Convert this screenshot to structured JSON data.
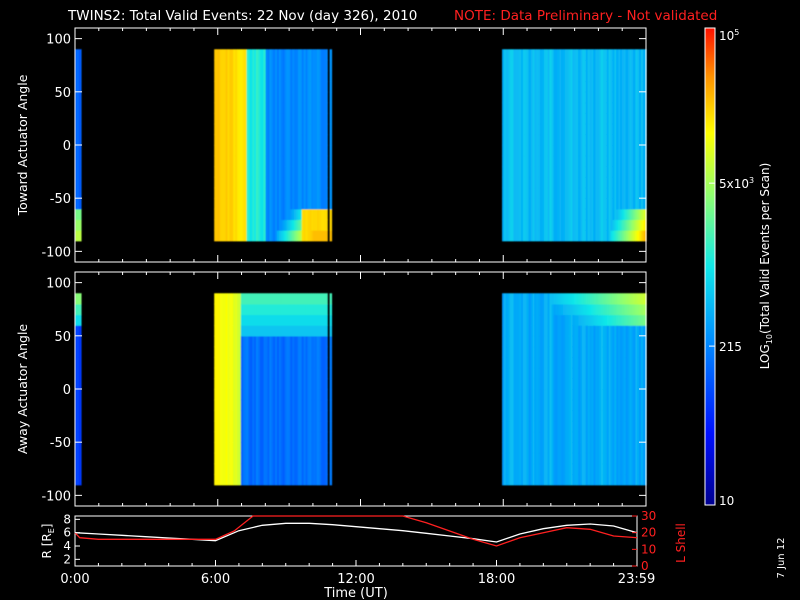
{
  "header": {
    "title": "TWINS2: Total Valid Events: 22 Nov (day 326), 2010",
    "note": "NOTE: Data Preliminary - Not validated"
  },
  "footer": {
    "date_stamp": "7 Jun 12"
  },
  "colors": {
    "background": "#000000",
    "axes": "#ffffff",
    "note": "#ff2020",
    "lshell": "#ff2020",
    "radius": "#ffffff"
  },
  "chart_data": [
    {
      "type": "heatmap",
      "panel": "toward",
      "ylabel": "Toward Actuator Angle",
      "ylim": [
        -110,
        110
      ],
      "yticks": [
        "100",
        "50",
        "0",
        "-50",
        "-100"
      ],
      "xlim_hours": [
        0,
        24
      ],
      "data_y_range": [
        -90,
        90
      ],
      "data_segments_hours": [
        [
          0.0,
          0.25
        ],
        [
          5.85,
          10.6
        ],
        [
          10.7,
          10.78
        ],
        [
          17.95,
          24.0
        ]
      ]
    },
    {
      "type": "heatmap",
      "panel": "away",
      "ylabel": "Away Actuator Angle",
      "ylim": [
        -110,
        110
      ],
      "yticks": [
        "100",
        "50",
        "0",
        "-50",
        "-100"
      ],
      "xlim_hours": [
        0,
        24
      ],
      "data_y_range": [
        -90,
        90
      ],
      "data_segments_hours": [
        [
          0.0,
          0.25
        ],
        [
          5.85,
          10.6
        ],
        [
          10.7,
          10.78
        ],
        [
          17.95,
          24.0
        ]
      ]
    },
    {
      "type": "line",
      "panel": "orbit",
      "ylabel": "R [R",
      "ylabel_sub": "E",
      "ylabel_end": "]",
      "ylim": [
        1,
        8.5
      ],
      "yticks": [
        "8",
        "6",
        "4",
        "2"
      ],
      "y2label": "L Shell",
      "y2lim": [
        0,
        30
      ],
      "y2ticks": [
        "30",
        "20",
        "10",
        "0"
      ],
      "xlabel": "Time (UT)",
      "xticks": [
        "0:00",
        "6:00",
        "12:00",
        "18:00",
        "23:59"
      ],
      "xtick_hours": [
        0,
        6,
        12,
        18,
        23.98
      ],
      "series": [
        {
          "axis": "left",
          "x": [
            0,
            1,
            2,
            3,
            4,
            5,
            6,
            7,
            8,
            9,
            10,
            11,
            12,
            13,
            14,
            15,
            16,
            17,
            18,
            19,
            20,
            21,
            22,
            23,
            24
          ],
          "values": [
            6.0,
            5.8,
            5.6,
            5.4,
            5.2,
            5.0,
            4.8,
            6.3,
            7.1,
            7.4,
            7.4,
            7.2,
            6.9,
            6.6,
            6.3,
            5.9,
            5.5,
            5.1,
            4.6,
            5.8,
            6.6,
            7.1,
            7.3,
            7.0,
            6.0
          ]
        },
        {
          "axis": "right",
          "x": [
            0,
            0.2,
            1,
            2,
            3,
            4,
            5,
            6,
            6.8,
            7.6,
            14.0,
            15,
            16,
            17,
            18,
            19,
            20,
            21,
            22,
            23,
            24
          ],
          "values": [
            20,
            17,
            16,
            16,
            16,
            16,
            16,
            16,
            21,
            30,
            30,
            26,
            21,
            16,
            12,
            17,
            20,
            23,
            22,
            18,
            17
          ]
        }
      ]
    },
    {
      "type": "heatmap",
      "panel": "colorbar",
      "ylabel": "LOG",
      "ylabel_sub": "10",
      "ylabel_end": "(Total Valid  Events per Scan)",
      "scale": "log",
      "range": [
        10,
        100000
      ],
      "ticks": [
        {
          "value": 10,
          "base": "10",
          "exp": ""
        },
        {
          "value": 215,
          "base": "215",
          "exp": ""
        },
        {
          "value": 5000,
          "base": "5x10",
          "exp": "3"
        },
        {
          "value": 100000,
          "base": "10",
          "exp": "5"
        }
      ]
    }
  ]
}
